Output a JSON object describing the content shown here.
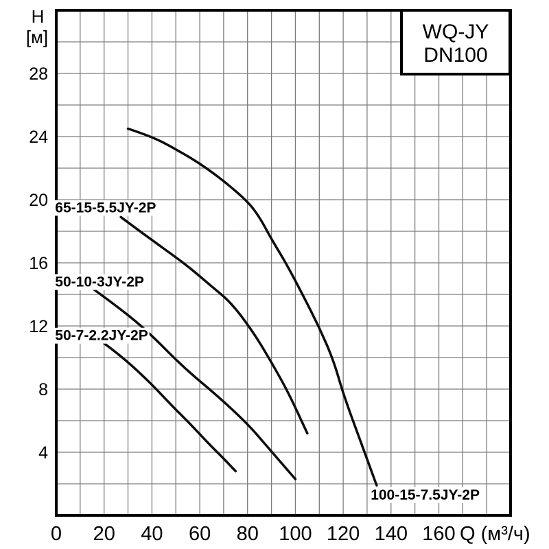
{
  "title_box": {
    "line1": "WQ-JY",
    "line2": "DN100"
  },
  "axes": {
    "y_label_line1": "H",
    "y_label_line2": "[м]",
    "x_label": "Q (м³/ч)"
  },
  "colors": {
    "background": "#ffffff",
    "grid": "#7d7d7d",
    "axis_frame": "#000000",
    "curve": "#0d0d0d",
    "text": "#000000",
    "label_background": "#ffffff"
  },
  "chart_data": {
    "type": "line",
    "title": "WQ-JY DN100",
    "xlabel": "Q (м³/ч)",
    "ylabel": "H [м]",
    "xlim": [
      0,
      190
    ],
    "ylim": [
      0,
      32
    ],
    "x_ticks": [
      0,
      20,
      40,
      60,
      80,
      100,
      120,
      140,
      160
    ],
    "y_ticks": [
      4,
      8,
      12,
      16,
      20,
      24,
      28
    ],
    "grid": {
      "x_step": 10,
      "y_step": 2,
      "visible": true
    },
    "legend_position": "inline-labels",
    "series": [
      {
        "name": "100-15-7.5JY-2P",
        "points": [
          [
            30,
            24.5
          ],
          [
            40,
            24.0
          ],
          [
            50,
            23.2
          ],
          [
            60,
            22.3
          ],
          [
            70,
            21.2
          ],
          [
            80,
            19.9
          ],
          [
            85,
            18.9
          ],
          [
            90,
            17.5
          ],
          [
            96,
            16.0
          ],
          [
            103,
            14.0
          ],
          [
            110,
            11.9
          ],
          [
            116,
            9.8
          ],
          [
            120,
            7.7
          ],
          [
            127,
            4.8
          ],
          [
            134,
            1.9
          ]
        ],
        "label": {
          "text": "100-15-7.5JY-2P",
          "x": 131.5,
          "y": 1.0,
          "anchor": "start"
        }
      },
      {
        "name": "65-15-5.5JY-2P",
        "points": [
          [
            27,
            18.9
          ],
          [
            35,
            18.0
          ],
          [
            45,
            16.9
          ],
          [
            55,
            15.8
          ],
          [
            65,
            14.5
          ],
          [
            73,
            13.5
          ],
          [
            82,
            11.7
          ],
          [
            90,
            9.7
          ],
          [
            97,
            7.8
          ],
          [
            105,
            5.2
          ]
        ],
        "label": {
          "text": "65-15-5.5JY-2P",
          "x": -0.5,
          "y": 19.2,
          "anchor": "start"
        }
      },
      {
        "name": "50-10-3JY-2P",
        "points": [
          [
            14,
            14.5
          ],
          [
            25,
            13.3
          ],
          [
            38,
            11.7
          ],
          [
            53,
            9.4
          ],
          [
            68,
            7.5
          ],
          [
            80,
            5.8
          ],
          [
            88,
            4.4
          ],
          [
            100,
            2.3
          ]
        ],
        "label": {
          "text": "50-10-3JY-2P",
          "x": -0.5,
          "y": 14.5,
          "anchor": "start"
        }
      },
      {
        "name": "50-7-2.2JY-2P",
        "points": [
          [
            20,
            10.9
          ],
          [
            28,
            10.0
          ],
          [
            40,
            8.3
          ],
          [
            48,
            7.0
          ],
          [
            56,
            5.8
          ],
          [
            64,
            4.5
          ],
          [
            70,
            3.6
          ],
          [
            75,
            2.8
          ]
        ],
        "label": {
          "text": "50-7-2.2JY-2P",
          "x": -0.5,
          "y": 11.1,
          "anchor": "start"
        }
      }
    ]
  }
}
